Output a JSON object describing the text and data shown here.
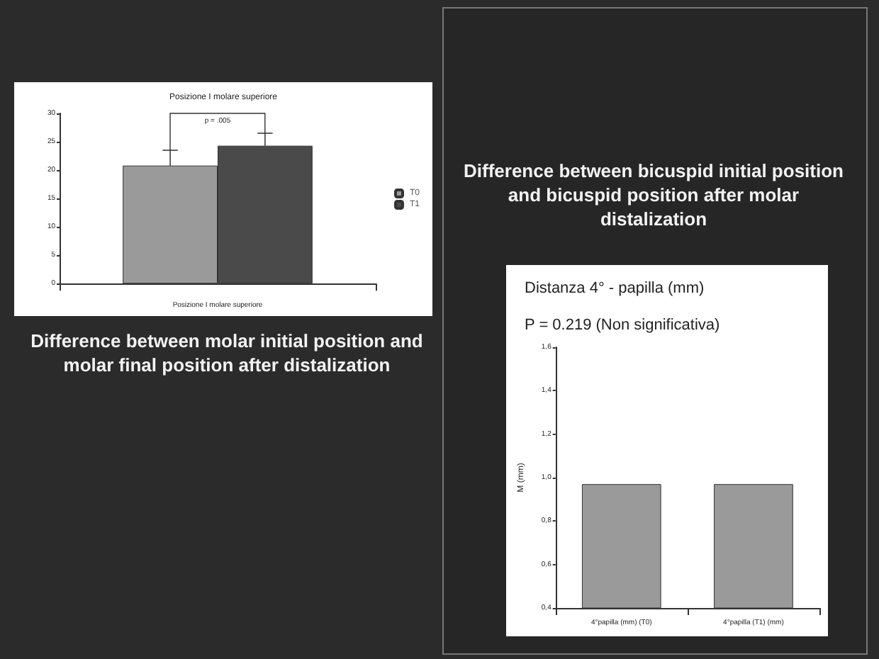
{
  "chart_data": [
    {
      "type": "bar",
      "title": "Posizione I molare superiore",
      "xlabel": "Posizione I molare superiore",
      "categories": [
        null
      ],
      "series": [
        {
          "name": "T0",
          "color": "#9a9a9a",
          "values": [
            20.8
          ],
          "errors": [
            [
              20.8,
              23.5
            ]
          ]
        },
        {
          "name": "T1",
          "color": "#4a4a4a",
          "values": [
            24.3
          ],
          "errors": [
            [
              24.3,
              26.5
            ]
          ]
        }
      ],
      "ylim": [
        0,
        30
      ],
      "yticks": [
        0,
        5,
        10,
        15,
        20,
        25,
        30
      ],
      "legend": "right",
      "grid": false,
      "annotations": [
        "p = .005",
        "Difference between molar initial position and molar final position after distalization"
      ]
    },
    {
      "type": "bar",
      "title": "Distanza 4° - papilla (mm)",
      "subtitle": "P = 0.219 (Non significativa)",
      "ylabel": "M (mm)",
      "categories": [
        "4°papilla (mm) (T0)",
        "4°papilla (T1) (mm)"
      ],
      "series": [
        {
          "color": "#9a9a9a",
          "values": [
            0.97,
            0.97
          ]
        }
      ],
      "ylim": [
        0.4,
        1.6
      ],
      "yticks": [
        {
          "value": 0.4,
          "label": "0,4"
        },
        {
          "value": 0.6,
          "label": "0,6"
        },
        {
          "value": 0.8,
          "label": "0,8"
        },
        {
          "value": 1.0,
          "label": "1,0"
        },
        {
          "value": 1.2,
          "label": "1,2"
        },
        {
          "value": 1.4,
          "label": "1,4"
        },
        {
          "value": 1.6,
          "label": "1,6"
        }
      ],
      "legend": false,
      "grid": false,
      "annotations": [
        "Difference between bicuspid initial position and bicuspid position after molar distalization"
      ]
    }
  ]
}
